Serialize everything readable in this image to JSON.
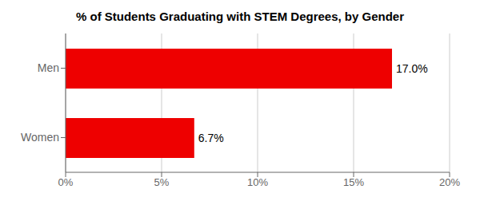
{
  "chart_data": {
    "type": "bar",
    "title": "% of Students Graduating with STEM Degrees, by Gender",
    "orientation": "horizontal",
    "categories": [
      "Women",
      "Men"
    ],
    "values": [
      6.7,
      17.0
    ],
    "value_labels": [
      "6.7%",
      "17.0%"
    ],
    "data_labels": true,
    "color": "#ee0000",
    "xlim": [
      0,
      20
    ],
    "xticks": [
      {
        "value": 0,
        "label": "0%"
      },
      {
        "value": 5,
        "label": "5%"
      },
      {
        "value": 10,
        "label": "10%"
      },
      {
        "value": 15,
        "label": "15%"
      },
      {
        "value": 20,
        "label": "20%"
      }
    ],
    "grid": true
  }
}
